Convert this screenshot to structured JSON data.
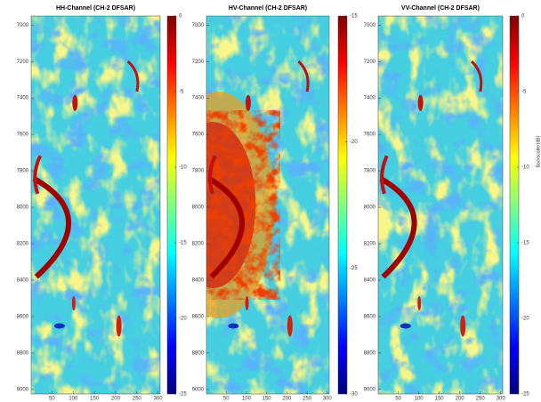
{
  "chart_data": [
    {
      "type": "image",
      "title": "HH-Channel (CH-2 DFSAR)",
      "colormap": "jet",
      "xlim": [
        1,
        305
      ],
      "xticks": [
        50,
        100,
        150,
        200,
        250,
        300
      ],
      "ylim": [
        6950,
        9025
      ],
      "yticks": [
        7000,
        7200,
        7400,
        7600,
        7800,
        8000,
        8200,
        8400,
        8600,
        8800,
        9000
      ],
      "y_reversed": true,
      "clim": [
        -25,
        0
      ],
      "cticks": [
        0,
        -5,
        -10,
        -15,
        -20,
        -25
      ]
    },
    {
      "type": "image",
      "title": "HV-Channel (CH-2 DFSAR)",
      "colormap": "jet",
      "xlim": [
        1,
        305
      ],
      "xticks": [
        50,
        100,
        150,
        200,
        250,
        300
      ],
      "ylim": [
        6950,
        9025
      ],
      "yticks": [
        7000,
        7200,
        7400,
        7600,
        7800,
        8000,
        8200,
        8400,
        8600,
        8800,
        9000
      ],
      "y_reversed": true,
      "clim": [
        -30,
        -15
      ],
      "cticks": [
        -15,
        -20,
        -25,
        -30
      ]
    },
    {
      "type": "image",
      "title": "VV-Channel (CH-2 DFSAR)",
      "colormap": "jet",
      "xlim": [
        1,
        305
      ],
      "xticks": [
        50,
        100,
        150,
        200,
        250,
        300
      ],
      "ylim": [
        6950,
        9025
      ],
      "yticks": [
        7000,
        7200,
        7400,
        7600,
        7800,
        8000,
        8200,
        8400,
        8600,
        8800,
        9000
      ],
      "y_reversed": true,
      "clim": [
        -25,
        0
      ],
      "cticks": [
        0,
        -5,
        -10,
        -15,
        -20,
        -25
      ],
      "colorbar_label": "Backscatter(dB)"
    }
  ]
}
